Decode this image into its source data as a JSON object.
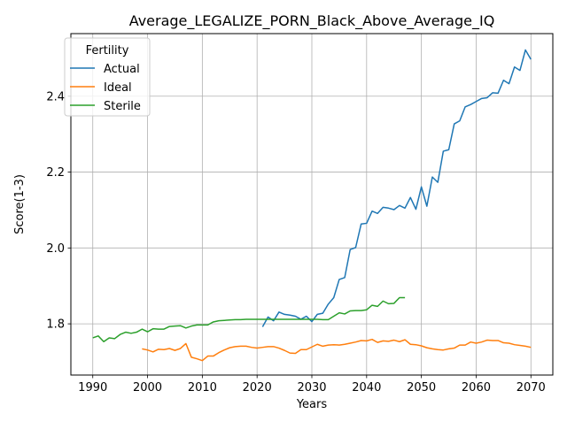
{
  "chart_data": {
    "type": "line",
    "title": "Average_LEGALIZE_PORN_Black_Above_Average_IQ",
    "xlabel": "Years",
    "ylabel": "Score(1-3)",
    "xlim": [
      1986,
      2074
    ],
    "ylim": [
      1.665,
      2.565
    ],
    "xticks": [
      1990,
      2000,
      2010,
      2020,
      2030,
      2040,
      2050,
      2060,
      2070
    ],
    "xtick_labels": [
      "1990",
      "2000",
      "2010",
      "2020",
      "2030",
      "2040",
      "2050",
      "2060",
      "2070"
    ],
    "yticks": [
      1.8,
      2.0,
      2.2,
      2.4
    ],
    "ytick_labels": [
      "1.8",
      "2.0",
      "2.2",
      "2.4"
    ],
    "grid": true,
    "legend": {
      "title": "Fertility",
      "placement": "top-left"
    },
    "series": [
      {
        "name": "Actual",
        "color": "#1f77b4",
        "x": [
          2021,
          2022,
          2023,
          2024,
          2025,
          2026,
          2027,
          2028,
          2029,
          2030,
          2031,
          2032,
          2033,
          2034,
          2035,
          2036,
          2037,
          2038,
          2039,
          2040,
          2041,
          2042,
          2043,
          2044,
          2045,
          2046,
          2047,
          2048,
          2049,
          2050,
          2051,
          2052,
          2053,
          2054,
          2055,
          2056,
          2057,
          2058,
          2059,
          2060,
          2061,
          2062,
          2063,
          2064,
          2065,
          2066,
          2067,
          2068,
          2069,
          2070
        ],
        "y": [
          1.792,
          1.818,
          1.808,
          1.831,
          1.825,
          1.823,
          1.82,
          1.812,
          1.82,
          1.806,
          1.825,
          1.828,
          1.852,
          1.869,
          1.917,
          1.922,
          1.996,
          2.001,
          2.063,
          2.065,
          2.097,
          2.091,
          2.107,
          2.105,
          2.101,
          2.112,
          2.105,
          2.133,
          2.102,
          2.161,
          2.11,
          2.187,
          2.173,
          2.255,
          2.259,
          2.327,
          2.335,
          2.372,
          2.378,
          2.386,
          2.394,
          2.396,
          2.409,
          2.408,
          2.442,
          2.433,
          2.477,
          2.468,
          2.522,
          2.497
        ]
      },
      {
        "name": "Ideal",
        "color": "#ff7f0e",
        "x": [
          1999,
          2000,
          2001,
          2002,
          2003,
          2004,
          2005,
          2006,
          2007,
          2008,
          2009,
          2010,
          2011,
          2012,
          2013,
          2014,
          2015,
          2016,
          2017,
          2018,
          2019,
          2020,
          2021,
          2022,
          2023,
          2024,
          2025,
          2026,
          2027,
          2028,
          2029,
          2030,
          2031,
          2032,
          2033,
          2034,
          2035,
          2036,
          2037,
          2038,
          2039,
          2040,
          2041,
          2042,
          2043,
          2044,
          2045,
          2046,
          2047,
          2048,
          2049,
          2050,
          2051,
          2052,
          2053,
          2054,
          2055,
          2056,
          2057,
          2058,
          2059,
          2060,
          2061,
          2062,
          2063,
          2064,
          2065,
          2066,
          2067,
          2068,
          2069,
          2070
        ],
        "y": [
          1.734,
          1.731,
          1.726,
          1.733,
          1.732,
          1.735,
          1.73,
          1.735,
          1.748,
          1.712,
          1.708,
          1.703,
          1.715,
          1.715,
          1.724,
          1.731,
          1.737,
          1.74,
          1.741,
          1.741,
          1.738,
          1.736,
          1.738,
          1.74,
          1.74,
          1.736,
          1.73,
          1.723,
          1.722,
          1.732,
          1.732,
          1.739,
          1.746,
          1.741,
          1.744,
          1.745,
          1.744,
          1.746,
          1.749,
          1.752,
          1.756,
          1.755,
          1.759,
          1.751,
          1.755,
          1.754,
          1.757,
          1.753,
          1.758,
          1.746,
          1.745,
          1.742,
          1.737,
          1.734,
          1.732,
          1.731,
          1.734,
          1.736,
          1.744,
          1.744,
          1.752,
          1.749,
          1.752,
          1.757,
          1.756,
          1.756,
          1.75,
          1.749,
          1.745,
          1.743,
          1.741,
          1.738
        ]
      },
      {
        "name": "Sterile",
        "color": "#2ca02c",
        "x": [
          1990,
          1991,
          1992,
          1993,
          1994,
          1995,
          1996,
          1997,
          1998,
          1999,
          2000,
          2001,
          2002,
          2003,
          2004,
          2005,
          2006,
          2007,
          2008,
          2009,
          2010,
          2011,
          2012,
          2013,
          2014,
          2015,
          2016,
          2017,
          2018,
          2019,
          2020,
          2021,
          2022,
          2023,
          2024,
          2025,
          2026,
          2027,
          2028,
          2029,
          2030,
          2031,
          2032,
          2033,
          2034,
          2035,
          2036,
          2037,
          2038,
          2039,
          2040,
          2041,
          2042,
          2043,
          2044,
          2045,
          2046,
          2047
        ],
        "y": [
          1.763,
          1.768,
          1.753,
          1.763,
          1.761,
          1.772,
          1.778,
          1.775,
          1.778,
          1.786,
          1.779,
          1.787,
          1.786,
          1.786,
          1.793,
          1.794,
          1.795,
          1.789,
          1.794,
          1.797,
          1.797,
          1.797,
          1.805,
          1.808,
          1.809,
          1.81,
          1.811,
          1.811,
          1.812,
          1.812,
          1.812,
          1.812,
          1.812,
          1.812,
          1.812,
          1.812,
          1.812,
          1.812,
          1.812,
          1.812,
          1.812,
          1.812,
          1.811,
          1.811,
          1.82,
          1.829,
          1.826,
          1.834,
          1.835,
          1.835,
          1.837,
          1.849,
          1.846,
          1.86,
          1.853,
          1.854,
          1.869,
          1.869
        ]
      }
    ]
  }
}
